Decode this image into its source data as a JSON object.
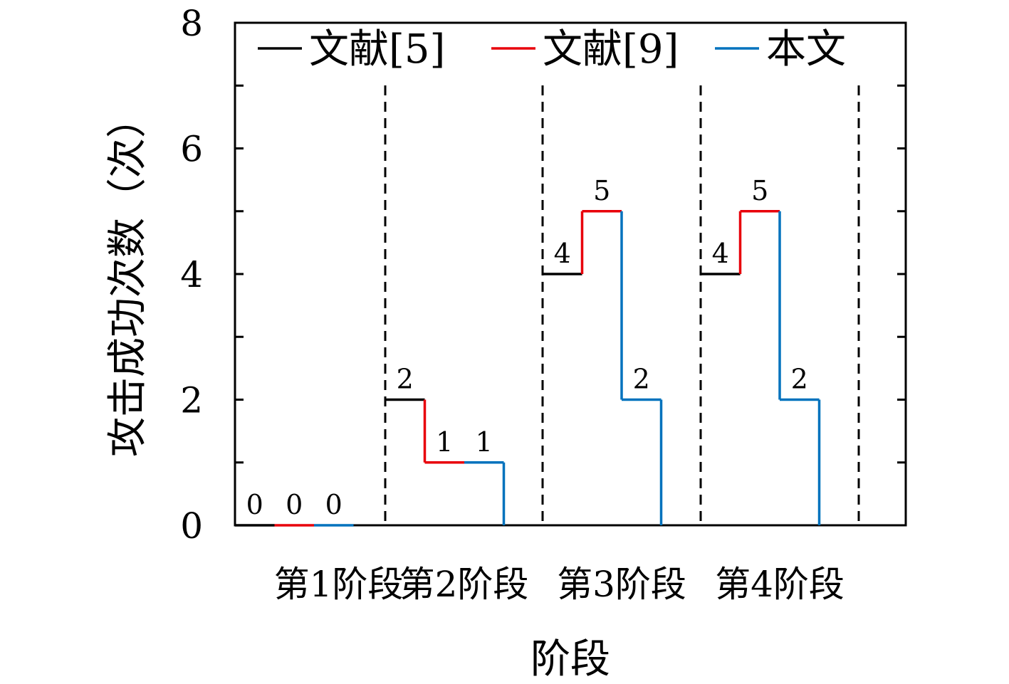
{
  "chart_data": {
    "type": "line",
    "subtype": "step",
    "title": "",
    "xlabel": "阶段",
    "ylabel": "攻击成功次数（次）",
    "ylim": [
      0,
      8
    ],
    "yticks": [
      0,
      2,
      4,
      6,
      8
    ],
    "categories": [
      "第1阶段",
      "第2阶段",
      "第3阶段",
      "第4阶段"
    ],
    "series": [
      {
        "name": "文献[5]",
        "color": "#000000",
        "values": [
          0,
          2,
          4,
          4
        ]
      },
      {
        "name": "文献[9]",
        "color": "#e8000b",
        "values": [
          0,
          1,
          5,
          5
        ]
      },
      {
        "name": "本文",
        "color": "#0072bd",
        "values": [
          0,
          1,
          2,
          2
        ]
      }
    ],
    "legend": "top",
    "grid": false,
    "stage_separators": "dashed"
  }
}
